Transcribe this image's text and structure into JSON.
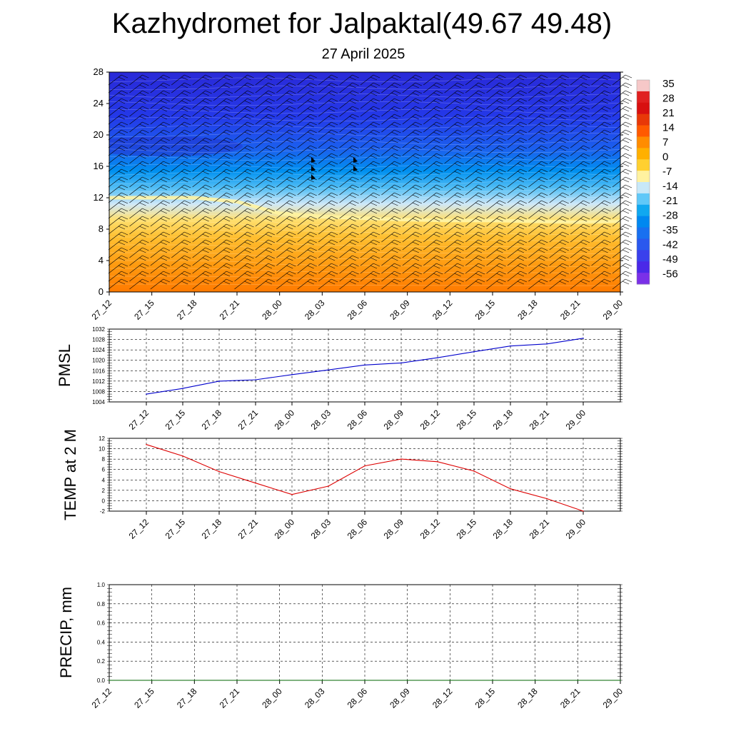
{
  "title": "Kazhydromet for Jalpaktal(49.67 49.48)",
  "subtitle": "27 April 2025",
  "time_labels": [
    "27_12",
    "27_15",
    "27_18",
    "27_21",
    "28_00",
    "28_03",
    "28_06",
    "28_09",
    "28_12",
    "28_15",
    "28_18",
    "28_21",
    "29_00"
  ],
  "chart_data": [
    {
      "type": "heatmap",
      "title": "",
      "xlabel": "",
      "ylabel": "",
      "x": [
        "27_12",
        "27_15",
        "27_18",
        "27_21",
        "28_00",
        "28_03",
        "28_06",
        "28_09",
        "28_12",
        "28_15",
        "28_18",
        "28_21",
        "29_00"
      ],
      "yticks": [
        0,
        4,
        8,
        12,
        16,
        20,
        24,
        28
      ],
      "ylim": [
        0,
        28
      ],
      "freezing_level": [
        12,
        12,
        12,
        11.5,
        10,
        9.6,
        9.4,
        9.2,
        9.1,
        9.1,
        9.0,
        8.9,
        9.0
      ],
      "colorbar": {
        "labels": [
          "35",
          "28",
          "21",
          "14",
          "7",
          "0",
          "-7",
          "-14",
          "-21",
          "-28",
          "-35",
          "-42",
          "-49",
          "-56"
        ],
        "range": [
          -63,
          42
        ],
        "placement": "right"
      },
      "wind_barbs": true,
      "grid": false
    },
    {
      "type": "line",
      "title": "",
      "xlabel": "",
      "ylabel": "PMSL",
      "x": [
        "27_12",
        "27_15",
        "27_18",
        "27_21",
        "28_00",
        "28_03",
        "28_06",
        "28_09",
        "28_12",
        "28_15",
        "28_18",
        "28_21",
        "29_00"
      ],
      "ylim": [
        1004,
        1032
      ],
      "yticks": [
        1004,
        1008,
        1012,
        1016,
        1020,
        1024,
        1028,
        1032
      ],
      "series": [
        {
          "values": [
            1007,
            1009.2,
            1012,
            1012.5,
            1014.5,
            1016.3,
            1018.2,
            1019,
            1021,
            1023.3,
            1025.5,
            1026.3,
            1028.5
          ]
        }
      ],
      "color": "#0000cc",
      "grid": true
    },
    {
      "type": "line",
      "title": "",
      "xlabel": "",
      "ylabel": "TEMP at 2 M",
      "x": [
        "27_12",
        "27_15",
        "27_18",
        "27_21",
        "28_00",
        "28_03",
        "28_06",
        "28_09",
        "28_12",
        "28_15",
        "28_18",
        "28_21",
        "29_00"
      ],
      "ylim": [
        -2,
        12
      ],
      "yticks": [
        -2,
        0,
        2,
        4,
        6,
        8,
        10,
        12
      ],
      "series": [
        {
          "values": [
            10.8,
            8.6,
            5.6,
            3.4,
            1.2,
            2.8,
            6.7,
            8.0,
            7.5,
            5.7,
            2.3,
            0.4,
            -2.0
          ]
        }
      ],
      "color": "#dd0000",
      "grid": true
    },
    {
      "type": "line",
      "title": "",
      "xlabel": "",
      "ylabel": "PRECIP, mm",
      "x": [
        "27_12",
        "27_15",
        "27_18",
        "27_21",
        "28_00",
        "28_03",
        "28_06",
        "28_09",
        "28_12",
        "28_15",
        "28_18",
        "28_21",
        "29_00"
      ],
      "ylim": [
        0,
        1
      ],
      "yticks": [
        "0.0",
        "0.2",
        "0.4",
        "0.6",
        "0.8",
        "1.0"
      ],
      "series": [
        {
          "values": [
            0,
            0,
            0,
            0,
            0,
            0,
            0,
            0,
            0,
            0,
            0,
            0,
            0
          ]
        }
      ],
      "color": "#006600",
      "grid": true
    }
  ]
}
